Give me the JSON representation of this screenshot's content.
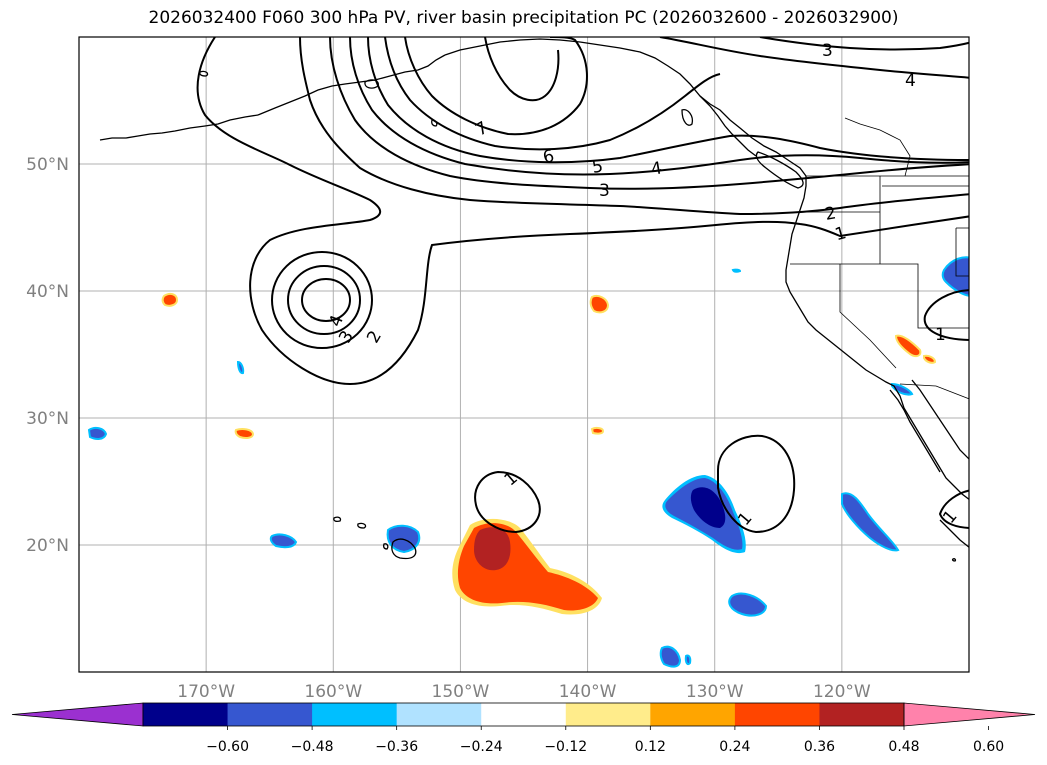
{
  "title": "2026032400 F060 300 hPa PV, river basin precipitation PC (2026032600 - 2026032900)",
  "map": {
    "lon_range": [
      -180,
      -110
    ],
    "lat_range": [
      10,
      60
    ],
    "lat_ticks": [
      {
        "value": 20,
        "label": "20°N"
      },
      {
        "value": 30,
        "label": "30°N"
      },
      {
        "value": 40,
        "label": "40°N"
      },
      {
        "value": 50,
        "label": "50°N"
      }
    ],
    "lon_ticks": [
      {
        "value": -170,
        "label": "170°W"
      },
      {
        "value": -160,
        "label": "160°W"
      },
      {
        "value": -150,
        "label": "150°W"
      },
      {
        "value": -140,
        "label": "140°W"
      },
      {
        "value": -130,
        "label": "130°W"
      },
      {
        "value": -120,
        "label": "120°W"
      }
    ],
    "grid": true
  },
  "colorbar": {
    "ticks": [
      "−0.60",
      "−0.48",
      "−0.36",
      "−0.24",
      "−0.12",
      "0.12",
      "0.24",
      "0.36",
      "0.48",
      "0.60"
    ],
    "colors": [
      "#9b30d0",
      "#00008b",
      "#3657d0",
      "#00bfff",
      "#b0e2ff",
      "#ffffff",
      "#ffec8b",
      "#ffa500",
      "#ff4500",
      "#b22222",
      "#ff82ab"
    ]
  },
  "contour_labels": [
    "1",
    "1",
    "1",
    "1",
    "1",
    "1",
    "2",
    "2",
    "3",
    "3",
    "3",
    "4",
    "4",
    "4",
    "5",
    "6",
    "7"
  ]
}
